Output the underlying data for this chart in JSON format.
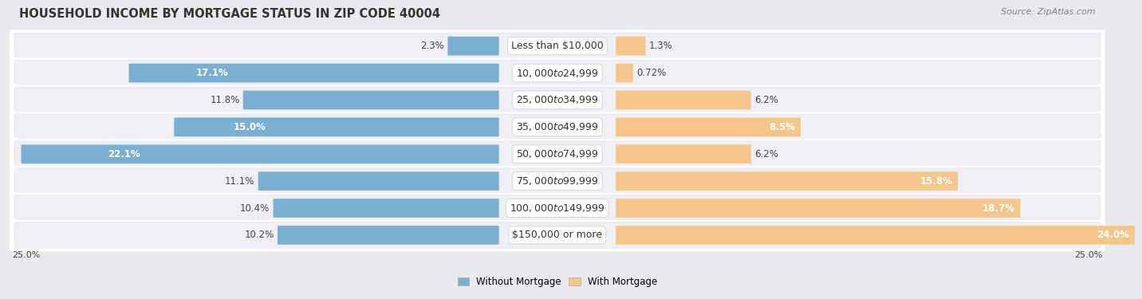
{
  "title": "HOUSEHOLD INCOME BY MORTGAGE STATUS IN ZIP CODE 40004",
  "source": "Source: ZipAtlas.com",
  "categories": [
    "Less than $10,000",
    "$10,000 to $24,999",
    "$25,000 to $34,999",
    "$35,000 to $49,999",
    "$50,000 to $74,999",
    "$75,000 to $99,999",
    "$100,000 to $149,999",
    "$150,000 or more"
  ],
  "without_mortgage": [
    2.3,
    17.1,
    11.8,
    15.0,
    22.1,
    11.1,
    10.4,
    10.2
  ],
  "with_mortgage": [
    1.3,
    0.72,
    6.2,
    8.5,
    6.2,
    15.8,
    18.7,
    24.0
  ],
  "without_mortgage_labels": [
    "2.3%",
    "17.1%",
    "11.8%",
    "15.0%",
    "22.1%",
    "11.1%",
    "10.4%",
    "10.2%"
  ],
  "with_mortgage_labels": [
    "1.3%",
    "0.72%",
    "6.2%",
    "8.5%",
    "6.2%",
    "15.8%",
    "18.7%",
    "24.0%"
  ],
  "without_label_inside": [
    false,
    true,
    false,
    true,
    true,
    false,
    false,
    false
  ],
  "with_label_inside": [
    false,
    false,
    false,
    true,
    false,
    true,
    true,
    true
  ],
  "color_without": "#7aafd4",
  "color_with": "#f5c68a",
  "axis_max": 25.0,
  "background_color": "#e8eaed",
  "row_bg_light": "#f4f4f6",
  "row_bg_dark": "#e0e2e6",
  "title_fontsize": 10.5,
  "source_fontsize": 8,
  "label_fontsize": 8.5,
  "category_fontsize": 9
}
